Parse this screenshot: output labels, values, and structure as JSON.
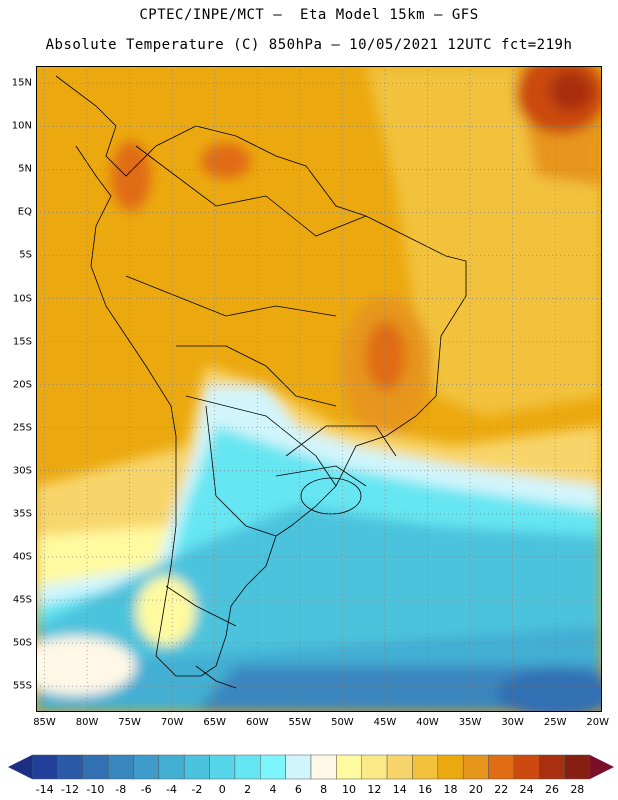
{
  "title": {
    "line1": "CPTEC/INPE/MCT –  Eta Model 15km – GFS",
    "line2": "Absolute Temperature (C) 850hPa – 10/05/2021 12UTC fct=219h"
  },
  "axes": {
    "lat_labels": [
      "15N",
      "10N",
      "5N",
      "EQ",
      "5S",
      "10S",
      "15S",
      "20S",
      "25S",
      "30S",
      "35S",
      "40S",
      "45S",
      "50S",
      "55S"
    ],
    "lat_values": [
      15,
      10,
      5,
      0,
      -5,
      -10,
      -15,
      -20,
      -25,
      -30,
      -35,
      -40,
      -45,
      -50,
      -55
    ],
    "lon_labels": [
      "85W",
      "80W",
      "75W",
      "70W",
      "65W",
      "60W",
      "55W",
      "50W",
      "45W",
      "40W",
      "35W",
      "30W",
      "25W",
      "20W"
    ],
    "lon_values": [
      -85,
      -80,
      -75,
      -70,
      -65,
      -60,
      -55,
      -50,
      -45,
      -40,
      -35,
      -30,
      -25,
      -20
    ],
    "lat_range": [
      -58,
      17
    ],
    "lon_range": [
      -86,
      -19.5
    ],
    "grid": "dotted"
  },
  "colorbar": {
    "labels": [
      "-14",
      "-12",
      "-10",
      "-8",
      "-6",
      "-4",
      "-2",
      "0",
      "2",
      "4",
      "6",
      "8",
      "10",
      "12",
      "14",
      "16",
      "18",
      "20",
      "22",
      "24",
      "26",
      "28"
    ],
    "colors": [
      "#21409a",
      "#2a5aa8",
      "#3270b4",
      "#3a86bf",
      "#3f9bc9",
      "#43afd3",
      "#4bc3dd",
      "#56d5e8",
      "#66e6f2",
      "#7cf6fc",
      "#d2f5fc",
      "#fff8e6",
      "#fffaa0",
      "#fbe987",
      "#f8d56b",
      "#f2c23c",
      "#eca90f",
      "#e6961c",
      "#e06c14",
      "#cc4a0f",
      "#a82f0f",
      "#861e12"
    ]
  }
}
